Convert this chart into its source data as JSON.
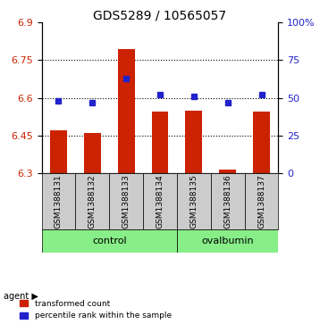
{
  "title": "GDS5289 / 10565057",
  "samples": [
    "GSM1388131",
    "GSM1388132",
    "GSM1388133",
    "GSM1388134",
    "GSM1388135",
    "GSM1388136",
    "GSM1388137"
  ],
  "bar_values": [
    6.47,
    6.46,
    6.795,
    6.545,
    6.55,
    6.315,
    6.545
  ],
  "percentile_values": [
    48,
    47,
    63,
    52,
    51,
    47,
    52
  ],
  "ymin": 6.3,
  "ymax": 6.9,
  "y2min": 0,
  "y2max": 100,
  "yticks": [
    6.3,
    6.45,
    6.6,
    6.75,
    6.9
  ],
  "y2ticks": [
    0,
    25,
    50,
    75,
    100
  ],
  "bar_color": "#CC2200",
  "percentile_color": "#2222CC",
  "control_group": [
    "GSM1388131",
    "GSM1388132",
    "GSM1388133",
    "GSM1388134"
  ],
  "ovalbumin_group": [
    "GSM1388135",
    "GSM1388136",
    "GSM1388137"
  ],
  "control_label": "control",
  "ovalbumin_label": "ovalbumin",
  "agent_label": "agent",
  "legend_bar_label": "transformed count",
  "legend_pct_label": "percentile rank within the sample",
  "group_bg_color": "#88EE88",
  "sample_bg_color": "#CCCCCC"
}
